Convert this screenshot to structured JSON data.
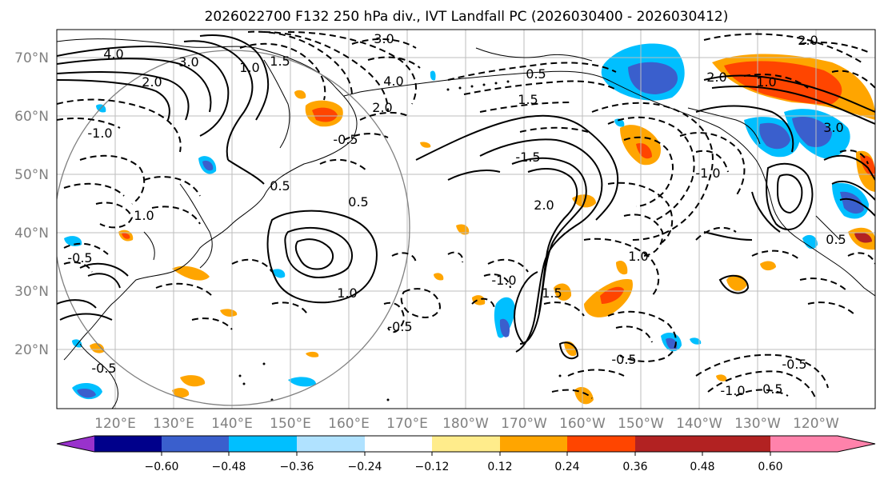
{
  "figure": {
    "title": "2026022700 F132 250 hPa div., IVT Landfall PC (2026030400 - 2026030412)"
  },
  "map": {
    "lat_labels": [
      "70°N",
      "60°N",
      "50°N",
      "40°N",
      "30°N",
      "20°N"
    ],
    "lon_labels": [
      "120°E",
      "130°E",
      "140°E",
      "150°E",
      "160°E",
      "170°E",
      "180°W",
      "170°W",
      "160°W",
      "150°W",
      "140°W",
      "130°W",
      "120°W"
    ],
    "contour_labels": [
      "4.0",
      "3.0",
      "2.0",
      "1.5",
      "1.0",
      "3.0",
      "4.0",
      "2.0",
      "1.5",
      "0.5",
      "-1.0",
      "-0.5",
      "0.5",
      "0.5",
      "1.0",
      "1.0",
      "-0.5",
      "-1.0",
      "-1.5",
      "2.0",
      "1.0",
      "-0.5",
      "-0.5",
      "-1.0",
      "-0.5",
      "-0.5",
      "2.0",
      "1.0",
      "3.0",
      "2.0",
      "0.5",
      "-1.0",
      "1.5",
      "-0.5"
    ]
  },
  "colorbar": {
    "ticks": [
      "−0.60",
      "−0.48",
      "−0.36",
      "−0.24",
      "−0.12",
      "0.12",
      "0.24",
      "0.36",
      "0.48",
      "0.60"
    ],
    "colors": [
      "#9932cc",
      "#00008b",
      "#3a5fcd",
      "#00bfff",
      "#b0e2ff",
      "#ffffff",
      "#ffec8b",
      "#ffa500",
      "#ff4500",
      "#b22222",
      "#ff82ab"
    ]
  }
}
